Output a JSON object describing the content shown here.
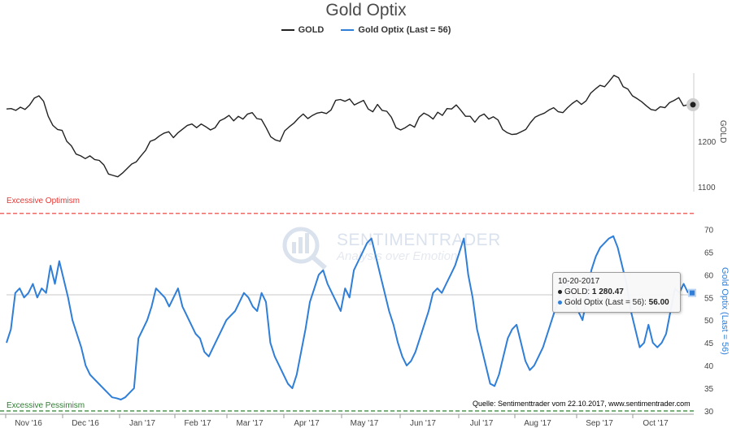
{
  "chart_data": {
    "type": "line",
    "title": "Gold Optix",
    "legend": {
      "placement": "top-center",
      "items": [
        "GOLD",
        "Gold Optix (Last = 56)"
      ]
    },
    "x_tick_labels": [
      "Nov '16",
      "Dec '16",
      "Jan '17",
      "Feb '17",
      "Mar '17",
      "Apr '17",
      "May '17",
      "Jun '17",
      "Jul '17",
      "Aug '17",
      "Sep '17",
      "Oct '17"
    ],
    "panels": [
      {
        "name": "price",
        "ylabel": "GOLD",
        "yticks": [
          1100,
          1200
        ],
        "ylim": [
          1095,
          1362
        ],
        "series": [
          {
            "name": "GOLD",
            "color": "#222222",
            "values": [
              1271,
              1272,
              1268,
              1275,
              1270,
              1280,
              1295,
              1300,
              1288,
              1255,
              1235,
              1226,
              1224,
              1200,
              1190,
              1172,
              1168,
              1162,
              1168,
              1160,
              1158,
              1148,
              1128,
              1125,
              1122,
              1130,
              1140,
              1150,
              1155,
              1168,
              1180,
              1200,
              1204,
              1212,
              1218,
              1221,
              1208,
              1219,
              1227,
              1235,
              1238,
              1230,
              1238,
              1232,
              1225,
              1230,
              1245,
              1250,
              1257,
              1245,
              1255,
              1249,
              1260,
              1263,
              1250,
              1248,
              1230,
              1210,
              1203,
              1200,
              1223,
              1232,
              1240,
              1251,
              1260,
              1250,
              1257,
              1262,
              1264,
              1261,
              1269,
              1290,
              1292,
              1288,
              1293,
              1280,
              1285,
              1290,
              1271,
              1265,
              1281,
              1268,
              1266,
              1253,
              1230,
              1225,
              1230,
              1237,
              1231,
              1253,
              1262,
              1257,
              1249,
              1264,
              1257,
              1272,
              1271,
              1280,
              1268,
              1255,
              1255,
              1242,
              1255,
              1260,
              1249,
              1254,
              1247,
              1226,
              1219,
              1215,
              1216,
              1221,
              1226,
              1241,
              1253,
              1258,
              1262,
              1269,
              1274,
              1265,
              1263,
              1274,
              1283,
              1290,
              1281,
              1289,
              1306,
              1315,
              1323,
              1320,
              1332,
              1345,
              1340,
              1320,
              1315,
              1300,
              1294,
              1287,
              1278,
              1270,
              1268,
              1276,
              1274,
              1285,
              1290,
              1296,
              1278,
              1280.47
            ]
          }
        ]
      },
      {
        "name": "optix",
        "ylabel": "Gold Optix (Last = 56)",
        "yticks": [
          30,
          35,
          40,
          45,
          50,
          55,
          60,
          65,
          70
        ],
        "ylim": [
          30,
          73.5
        ],
        "series": [
          {
            "name": "Gold Optix (Last = 56)",
            "color": "#2f7ed8",
            "values": [
              45,
              48,
              56,
              57,
              55,
              56,
              58,
              55,
              57,
              56,
              62,
              58,
              63,
              59,
              55,
              50,
              47,
              44,
              40,
              38,
              37,
              36,
              35,
              34,
              33,
              32.8,
              32.5,
              33,
              34,
              35,
              46,
              48,
              50,
              53,
              57,
              56,
              55,
              53,
              55,
              57,
              53,
              51,
              49,
              47,
              46,
              43,
              42,
              44,
              46,
              48,
              50,
              51,
              52,
              54,
              56,
              55,
              53,
              52,
              56,
              54,
              45,
              42,
              40,
              38,
              36,
              35,
              38,
              43,
              48,
              54,
              57,
              60,
              61,
              58,
              56,
              54,
              52,
              57,
              55,
              61,
              63,
              65,
              67,
              68,
              64,
              60,
              56,
              52,
              49,
              45,
              42,
              40,
              41,
              43,
              46,
              49,
              52,
              56,
              57,
              56,
              58,
              60,
              62,
              65,
              68,
              60,
              55,
              48,
              44,
              40,
              36,
              35.5,
              38,
              42,
              46,
              48,
              49,
              45,
              41,
              39,
              40,
              42,
              44,
              47,
              50,
              53,
              56,
              59,
              57,
              55,
              52,
              50,
              55,
              61,
              64,
              66,
              67,
              68,
              68.5,
              66,
              62,
              58,
              52,
              48,
              44,
              45,
              49,
              45,
              44,
              45,
              47,
              52,
              57,
              56,
              58,
              56
            ]
          }
        ],
        "reference_lines": [
          {
            "label": "Excessive Optimism",
            "value": 73.5,
            "color": "#e53935"
          },
          {
            "label": "Excessive Pessimism",
            "value": 30,
            "color": "#2e7d32"
          }
        ]
      }
    ],
    "tooltip": {
      "date": "10-20-2017",
      "gold_label": "GOLD:",
      "gold_value": "1 280.47",
      "optix_label": "Gold Optix (Last = 56):",
      "optix_value": "56.00"
    },
    "grid": false
  },
  "watermark": {
    "name": "SENTIMENTRADER",
    "tagline": "Analysis over Emotion"
  },
  "source": "Quelle: Sentimenttrader vom 22.10.2017, www.sentimentrader.com",
  "colors": {
    "gold_line": "#222222",
    "optix_line": "#2f7ed8",
    "optimism": "#e53935",
    "pessimism": "#2e7d32"
  }
}
